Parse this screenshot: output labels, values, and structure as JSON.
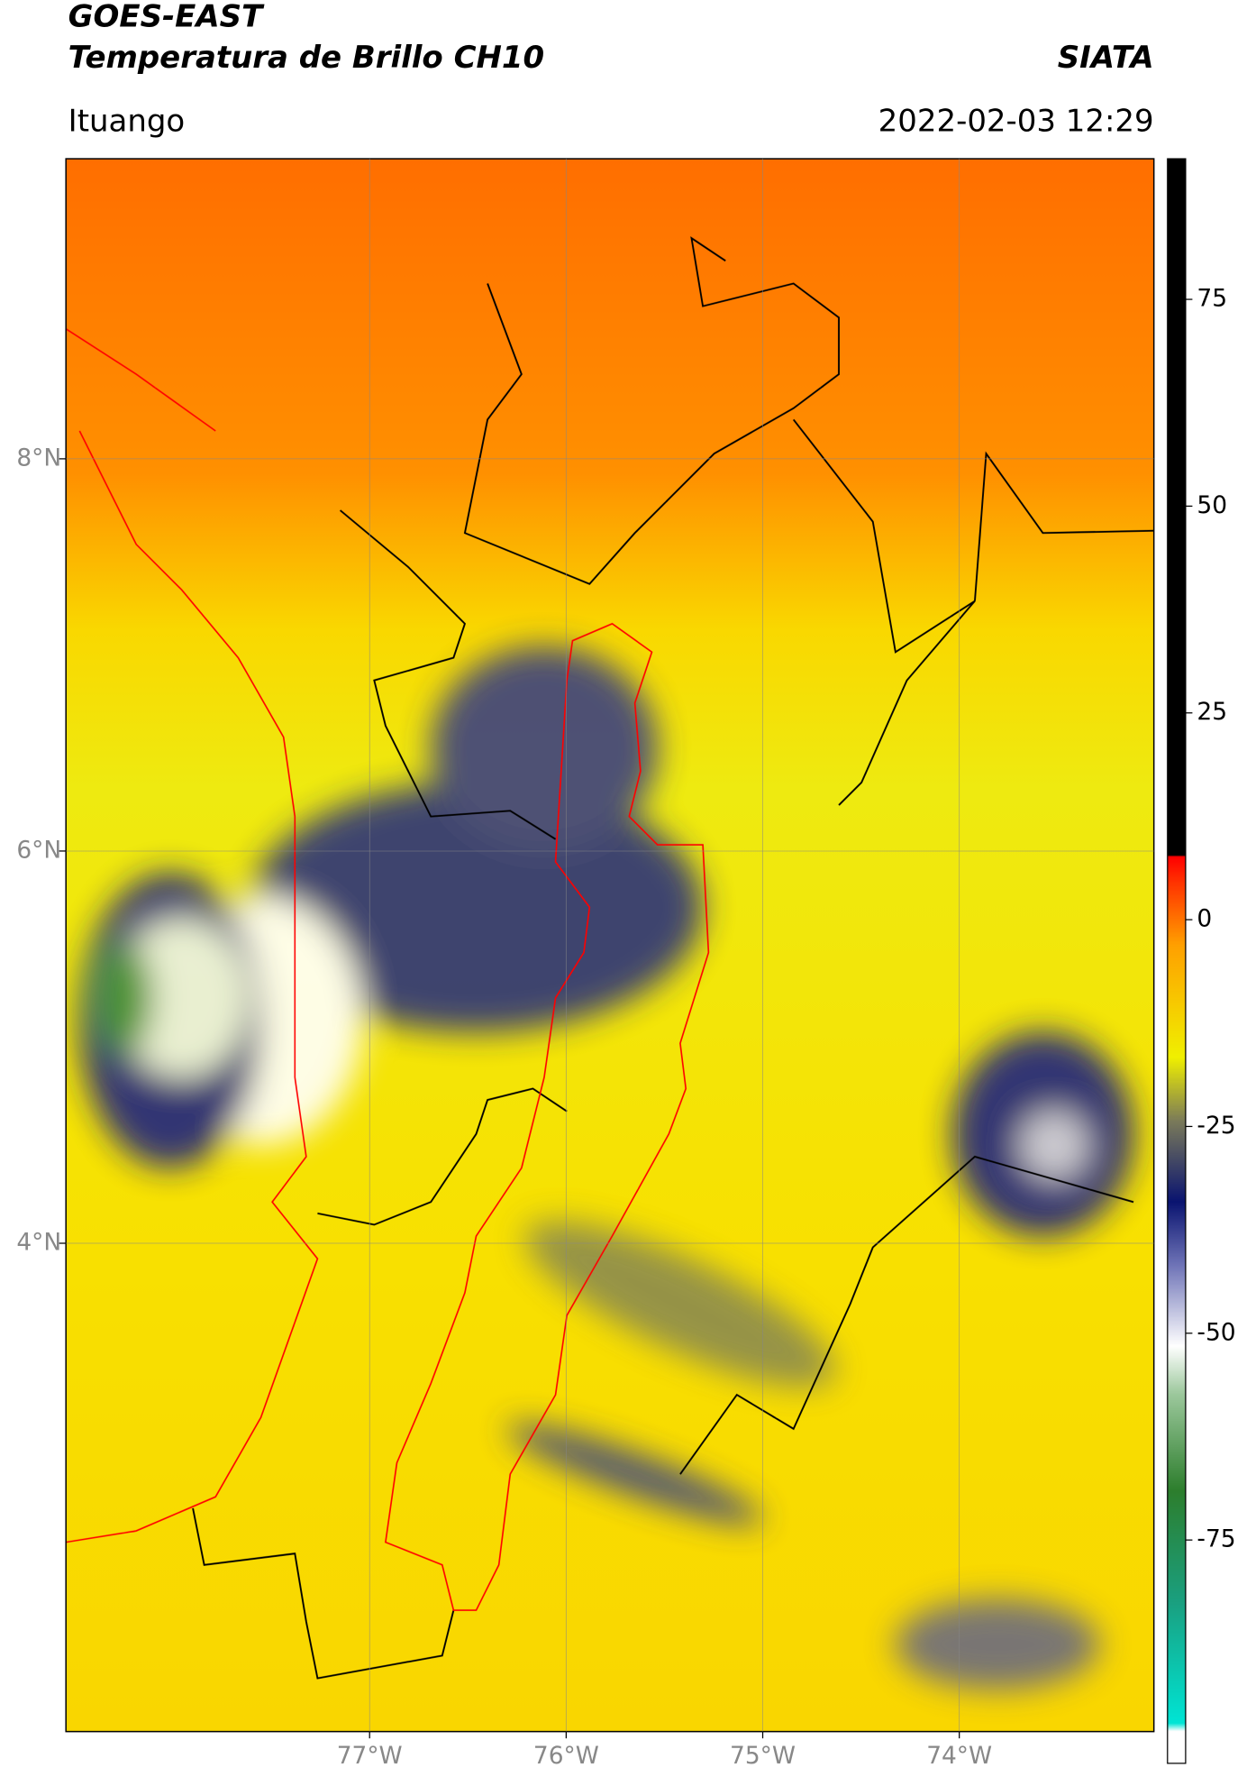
{
  "header": {
    "title": "GOES-EAST",
    "subtitle": "Temperatura de Brillo CH10",
    "organization": "SIATA",
    "region": "Ituango",
    "datetime": "2022-02-03 12:29"
  },
  "map": {
    "xlim": [
      -78.545,
      -73.01
    ],
    "ylim": [
      1.51,
      9.53
    ],
    "xticks": [
      {
        "value": -77,
        "label": "77°W"
      },
      {
        "value": -76,
        "label": "76°W"
      },
      {
        "value": -75,
        "label": "75°W"
      },
      {
        "value": -74,
        "label": "74°W"
      }
    ],
    "yticks": [
      {
        "value": 8,
        "label": "8°N"
      },
      {
        "value": 6,
        "label": "6°N"
      },
      {
        "value": 4,
        "label": "4°N"
      }
    ],
    "grid": true
  },
  "colorbar": {
    "clim": [
      -102,
      92
    ],
    "ticks": [
      75,
      50,
      25,
      0,
      -25,
      -50,
      -75
    ]
  }
}
